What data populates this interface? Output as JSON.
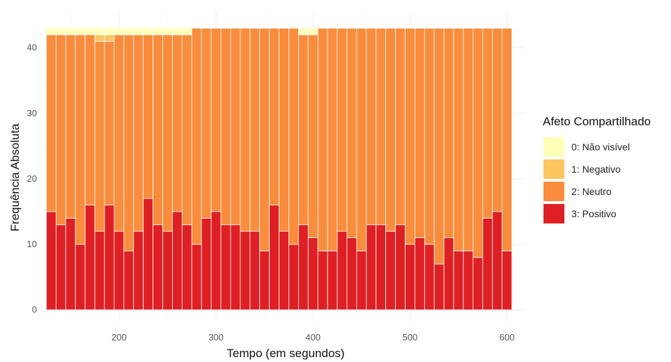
{
  "chart_data": {
    "type": "bar",
    "stacked": true,
    "xlabel": "Tempo (em segundos)",
    "ylabel": "Frequência Absoluta",
    "xlim": [
      122.5,
      617.5
    ],
    "ylim": [
      -1.8,
      45.5
    ],
    "x_ticks": [
      200,
      300,
      400,
      500,
      600
    ],
    "y_ticks": [
      0,
      10,
      20,
      30,
      40
    ],
    "grid": true,
    "legend_position": "right",
    "legend_title": "Afeto Compartilhado",
    "x": [
      130,
      140,
      150,
      160,
      170,
      180,
      190,
      200,
      210,
      220,
      230,
      240,
      250,
      260,
      270,
      280,
      290,
      300,
      310,
      320,
      330,
      340,
      350,
      360,
      370,
      380,
      390,
      400,
      410,
      420,
      430,
      440,
      450,
      460,
      470,
      480,
      490,
      500,
      510,
      520,
      530,
      540,
      550,
      560,
      570,
      580,
      590,
      600
    ],
    "series": [
      {
        "name": "3: Positivo",
        "color": "#de2024",
        "values": [
          15,
          13,
          14,
          10,
          16,
          12,
          16,
          12,
          9,
          12,
          17,
          13,
          12,
          15,
          13,
          10,
          14,
          15,
          13,
          13,
          12,
          12,
          9,
          16,
          12,
          10,
          13,
          11,
          9,
          9,
          12,
          11,
          9,
          13,
          13,
          12,
          13,
          10,
          11,
          10,
          7,
          11,
          9,
          9,
          8,
          14,
          15,
          9
        ]
      },
      {
        "name": "2: Neutro",
        "color": "#f98d3d",
        "values": [
          27,
          29,
          28,
          32,
          26,
          29,
          25,
          30,
          33,
          30,
          25,
          29,
          30,
          27,
          29,
          33,
          29,
          28,
          30,
          30,
          31,
          31,
          34,
          27,
          31,
          33,
          29,
          31,
          34,
          34,
          31,
          32,
          34,
          30,
          30,
          31,
          30,
          33,
          32,
          33,
          36,
          32,
          34,
          34,
          35,
          29,
          28,
          34
        ]
      },
      {
        "name": "1: Negativo",
        "color": "#fdc661",
        "values": [
          0,
          0,
          0,
          0,
          0,
          1,
          1,
          0,
          0,
          0,
          0,
          0,
          0,
          0,
          0,
          0,
          0,
          0,
          0,
          0,
          0,
          0,
          0,
          0,
          0,
          0,
          0,
          0,
          0,
          0,
          0,
          0,
          0,
          0,
          0,
          0,
          0,
          0,
          0,
          0,
          0,
          0,
          0,
          0,
          0,
          0,
          0,
          0
        ]
      },
      {
        "name": "0: Não visível",
        "color": "#ffffb8",
        "values": [
          1,
          1,
          1,
          1,
          1,
          1,
          1,
          1,
          1,
          1,
          1,
          1,
          1,
          1,
          1,
          0,
          0,
          0,
          0,
          0,
          0,
          0,
          0,
          0,
          0,
          0,
          1,
          1,
          0,
          0,
          0,
          0,
          0,
          0,
          0,
          0,
          0,
          0,
          0,
          0,
          0,
          0,
          0,
          0,
          0,
          0,
          0,
          0
        ]
      }
    ]
  }
}
